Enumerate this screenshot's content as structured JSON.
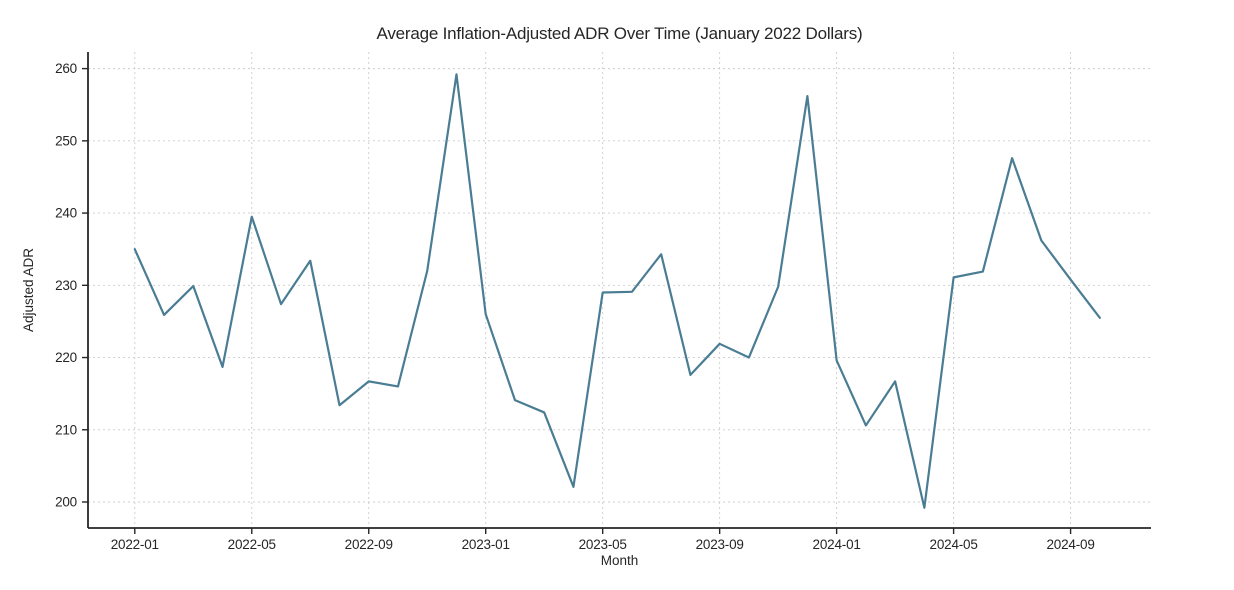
{
  "chart_data": {
    "type": "line",
    "title": "Average Inflation-Adjusted ADR Over Time (January 2022 Dollars)",
    "xlabel": "Month",
    "ylabel": "Adjusted ADR",
    "x": [
      "2022-01",
      "2022-02",
      "2022-03",
      "2022-04",
      "2022-05",
      "2022-06",
      "2022-07",
      "2022-08",
      "2022-09",
      "2022-10",
      "2022-11",
      "2022-12",
      "2023-01",
      "2023-02",
      "2023-03",
      "2023-04",
      "2023-05",
      "2023-06",
      "2023-07",
      "2023-08",
      "2023-09",
      "2023-10",
      "2023-11",
      "2023-12",
      "2024-01",
      "2024-02",
      "2024-03",
      "2024-04",
      "2024-05",
      "2024-06",
      "2024-07",
      "2024-08",
      "2024-09",
      "2024-10"
    ],
    "values": [
      235.0,
      225.9,
      229.9,
      218.7,
      239.5,
      227.4,
      233.4,
      213.4,
      216.7,
      216.0,
      232.0,
      259.2,
      226.0,
      214.1,
      212.4,
      202.1,
      229.0,
      229.1,
      234.3,
      217.6,
      221.9,
      220.0,
      229.8,
      256.2,
      219.6,
      210.6,
      216.7,
      199.2,
      231.1,
      231.9,
      247.6,
      236.2,
      230.8,
      225.5
    ],
    "yticks": [
      200,
      210,
      220,
      230,
      240,
      250,
      260
    ],
    "xtick_labels": [
      "2022-01",
      "2022-05",
      "2022-09",
      "2023-01",
      "2023-05",
      "2023-09",
      "2024-01",
      "2024-05",
      "2024-09"
    ],
    "xtick_every": 4,
    "ylim": [
      196.4,
      262.3
    ],
    "xlim_month_index": [
      -1.6,
      34.75
    ],
    "grid": true,
    "legend": "none",
    "line_color": "#4a7d94",
    "grid_color": "#cccccc",
    "spine_color": "#262626"
  }
}
